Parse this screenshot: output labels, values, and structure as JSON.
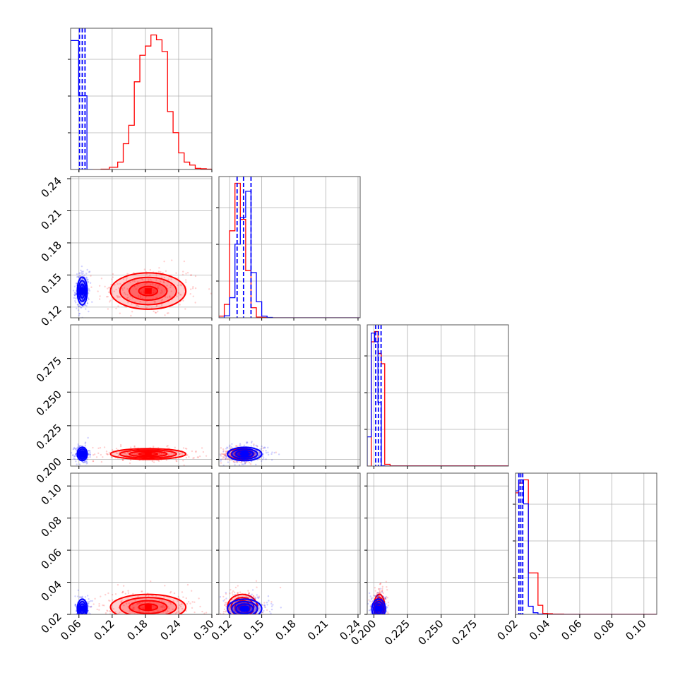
{
  "chart_data": {
    "type": "scatter",
    "subtype": "corner-plot",
    "title": "",
    "grid": true,
    "legend": "none",
    "series_colors": {
      "blue": "#0000ff",
      "red": "#ff0000"
    },
    "parameters": [
      {
        "range": [
          0.045,
          0.3
        ],
        "ticks": [
          0.06,
          0.12,
          0.18,
          0.24,
          0.3
        ],
        "tick_labels": [
          "0.06",
          "0.12",
          "0.18",
          "0.24",
          "0.30"
        ],
        "xlabel": "",
        "ylabel": ""
      },
      {
        "range": [
          0.11,
          0.242
        ],
        "ticks": [
          0.12,
          0.15,
          0.18,
          0.21,
          0.24
        ],
        "tick_labels": [
          "0.12",
          "0.15",
          "0.18",
          "0.21",
          "0.24"
        ],
        "xlabel": "",
        "ylabel": ""
      },
      {
        "range": [
          0.195,
          0.3
        ],
        "ticks": [
          0.2,
          0.225,
          0.25,
          0.275
        ],
        "tick_labels": [
          "0.200",
          "0.225",
          "0.250",
          "0.275"
        ],
        "xlabel": "",
        "ylabel": ""
      },
      {
        "range": [
          0.02,
          0.108
        ],
        "ticks": [
          0.02,
          0.04,
          0.06,
          0.08,
          0.1
        ],
        "tick_labels": [
          "0.02",
          "0.04",
          "0.06",
          "0.08",
          "0.10"
        ],
        "xlabel": "",
        "ylabel": ""
      }
    ],
    "diagonal_histograms": [
      {
        "param": 0,
        "blue": {
          "edges": [
            0.045,
            0.0595,
            0.0745,
            0.085
          ],
          "counts": [
            3500,
            2000,
            0
          ],
          "quantile_lines": [
            0.061,
            0.066,
            0.071
          ]
        },
        "red": {
          "edges": [
            0.085,
            0.1,
            0.115,
            0.13,
            0.14,
            0.15,
            0.16,
            0.17,
            0.18,
            0.19,
            0.2,
            0.21,
            0.22,
            0.23,
            0.24,
            0.25,
            0.26,
            0.27,
            0.28,
            0.29,
            0.3
          ],
          "counts": [
            0,
            10,
            60,
            200,
            700,
            1200,
            2380,
            3100,
            3350,
            3650,
            3520,
            3200,
            1570,
            1000,
            450,
            200,
            120,
            30,
            20,
            10
          ]
        }
      },
      {
        "param": 1,
        "blue": {
          "edges": [
            0.11,
            0.115,
            0.12,
            0.125,
            0.13,
            0.135,
            0.14,
            0.145,
            0.15,
            0.155,
            0.16,
            0.165,
            0.242
          ],
          "counts": [
            0,
            60,
            600,
            2200,
            3000,
            3780,
            1350,
            480,
            50,
            10,
            0,
            0
          ],
          "quantile_lines": [
            0.127,
            0.133,
            0.14
          ]
        },
        "red": {
          "edges": [
            0.11,
            0.115,
            0.12,
            0.125,
            0.13,
            0.135,
            0.14,
            0.145,
            0.15,
            0.155,
            0.16,
            0.242
          ],
          "counts": [
            50,
            400,
            2600,
            4020,
            2940,
            1410,
            300,
            20,
            10,
            5,
            0
          ]
        }
      },
      {
        "param": 2,
        "blue": {
          "edges": [
            0.195,
            0.198,
            0.2005,
            0.203,
            0.2055,
            0.208,
            0.212,
            0.3
          ],
          "counts": [
            1000,
            4550,
            4250,
            2170,
            10,
            0,
            0
          ],
          "quantile_lines": [
            0.2013,
            0.2033,
            0.2053
          ]
        },
        "red": {
          "edges": [
            0.195,
            0.198,
            0.2005,
            0.203,
            0.2055,
            0.208,
            0.212,
            0.3
          ],
          "counts": [
            0,
            4250,
            4600,
            3850,
            3500,
            60,
            8
          ]
        }
      },
      {
        "param": 3,
        "blue": {
          "edges": [
            0.02,
            0.022,
            0.025,
            0.028,
            0.031,
            0.034,
            0.037,
            0.04,
            0.108
          ],
          "counts": [
            3810,
            4150,
            3410,
            250,
            50,
            10,
            0,
            0
          ],
          "quantile_lines": [
            0.0221,
            0.0233,
            0.0245
          ]
        },
        "red": {
          "edges": [
            0.02,
            0.022,
            0.025,
            0.028,
            0.031,
            0.034,
            0.037,
            0.04,
            0.043,
            0.05,
            0.108
          ],
          "counts": [
            3750,
            4050,
            4150,
            1280,
            1280,
            280,
            30,
            20,
            10,
            5
          ]
        }
      }
    ],
    "scatter_panels": [
      {
        "xparam": 0,
        "yparam": 1,
        "blue": {
          "center": [
            0.066,
            0.135
          ],
          "spread": [
            0.0045,
            0.0065
          ]
        },
        "red": {
          "center": [
            0.185,
            0.135
          ],
          "spread": [
            0.034,
            0.0085
          ]
        }
      },
      {
        "xparam": 0,
        "yparam": 2,
        "blue": {
          "center": [
            0.066,
            0.204
          ],
          "spread": [
            0.0045,
            0.0025
          ]
        },
        "red": {
          "center": [
            0.185,
            0.204
          ],
          "spread": [
            0.034,
            0.002
          ]
        }
      },
      {
        "xparam": 1,
        "yparam": 2,
        "blue": {
          "center": [
            0.134,
            0.204
          ],
          "spread": [
            0.008,
            0.0025
          ]
        },
        "red": {
          "center": [
            0.132,
            0.204
          ],
          "spread": [
            0.007,
            0.002
          ]
        }
      },
      {
        "xparam": 0,
        "yparam": 3,
        "blue": {
          "center": [
            0.066,
            0.0235
          ],
          "spread": [
            0.0045,
            0.003
          ]
        },
        "red": {
          "center": [
            0.185,
            0.0245
          ],
          "spread": [
            0.034,
            0.004
          ]
        }
      },
      {
        "xparam": 1,
        "yparam": 3,
        "blue": {
          "center": [
            0.134,
            0.0235
          ],
          "spread": [
            0.008,
            0.003
          ]
        },
        "red": {
          "center": [
            0.132,
            0.0245
          ],
          "spread": [
            0.007,
            0.004
          ]
        }
      },
      {
        "xparam": 2,
        "yparam": 3,
        "blue": {
          "center": [
            0.2035,
            0.0235
          ],
          "spread": [
            0.0025,
            0.003
          ]
        },
        "red": {
          "center": [
            0.204,
            0.0245
          ],
          "spread": [
            0.002,
            0.004
          ]
        }
      }
    ]
  }
}
